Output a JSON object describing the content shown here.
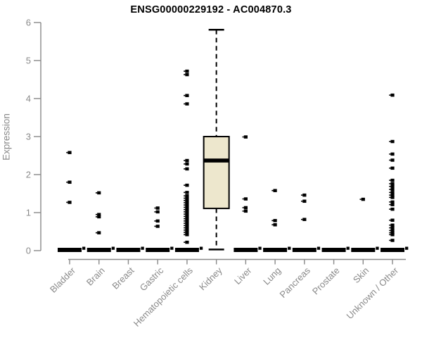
{
  "title": "ENSG00000229192 - AC004870.3",
  "ylabel": "Expression",
  "chart_data": {
    "type": "boxplot",
    "title": "ENSG00000229192 - AC004870.3",
    "xlabel": "",
    "ylabel": "Expression",
    "ylim": [
      0,
      6
    ],
    "yticks": [
      0,
      1,
      2,
      3,
      4,
      5,
      6
    ],
    "grid": false,
    "legend": "none",
    "categories": [
      "Bladder",
      "Brain",
      "Breast",
      "Gastric",
      "Hematopoietic cells",
      "Kidney",
      "Liver",
      "Lung",
      "Pancreas",
      "Prostate",
      "Skin",
      "Unknown / Other"
    ],
    "series": [
      {
        "category": "Bladder",
        "zero_bar": true,
        "points": [
          2.58,
          1.8,
          1.27
        ]
      },
      {
        "category": "Brain",
        "zero_bar": true,
        "points": [
          1.52,
          0.95,
          0.89,
          0.47
        ]
      },
      {
        "category": "Breast",
        "zero_bar": true,
        "points": []
      },
      {
        "category": "Gastric",
        "zero_bar": true,
        "points": [
          1.12,
          1.02,
          0.78,
          0.64
        ]
      },
      {
        "category": "Hematopoietic cells",
        "zero_bar": true,
        "points": [
          4.72,
          4.63,
          4.08,
          3.86,
          2.37,
          2.28,
          2.15,
          1.72,
          1.53,
          1.44,
          1.38,
          1.32,
          1.26,
          1.2,
          1.14,
          1.08,
          1.02,
          0.96,
          0.9,
          0.84,
          0.78,
          0.72,
          0.66,
          0.6,
          0.54,
          0.48,
          0.42,
          0.22
        ]
      },
      {
        "category": "Kidney",
        "zero_bar": false,
        "points": [],
        "box": {
          "whisker_low": 0.03,
          "q1": 1.11,
          "median": 2.37,
          "q3": 3.0,
          "whisker_high": 5.81
        }
      },
      {
        "category": "Liver",
        "zero_bar": true,
        "points": [
          2.99,
          1.36,
          1.13,
          1.04
        ]
      },
      {
        "category": "Lung",
        "zero_bar": true,
        "points": [
          1.58,
          0.79,
          0.68
        ]
      },
      {
        "category": "Pancreas",
        "zero_bar": true,
        "points": [
          1.46,
          1.3,
          0.82
        ]
      },
      {
        "category": "Prostate",
        "zero_bar": true,
        "points": []
      },
      {
        "category": "Skin",
        "zero_bar": true,
        "points": [
          1.35
        ]
      },
      {
        "category": "Unknown / Other",
        "zero_bar": true,
        "points": [
          4.09,
          2.87,
          2.54,
          2.38,
          2.17,
          1.85,
          1.76,
          1.69,
          1.61,
          1.53,
          1.46,
          1.4,
          1.28,
          1.21,
          1.09,
          0.8,
          0.67,
          0.6,
          0.53,
          0.47,
          0.42,
          0.27
        ]
      }
    ],
    "colors": {
      "box_fill": "#ede7cd",
      "box_border": "#000000",
      "median": "#000000",
      "point": "#000000",
      "zero_bar": "#000000",
      "axis_line": "#888888",
      "tick_label": "#8a8a8a",
      "title": "#000000",
      "background": "#ffffff"
    }
  }
}
